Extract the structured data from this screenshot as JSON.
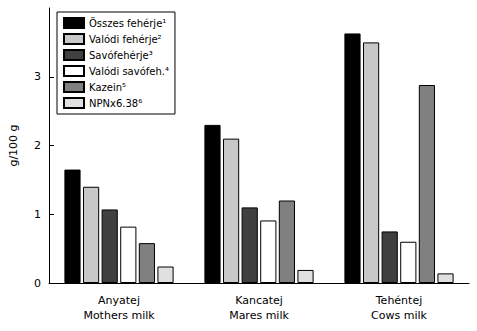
{
  "chart_data": {
    "type": "bar",
    "y_label": "g/100 g",
    "categories": [
      "Anyatej\nMothers milk",
      "Kancatej\nMares milk",
      "Tehéntej\nCows milk"
    ],
    "series": [
      {
        "name": "Összes fehérje¹",
        "color": "#000000",
        "values": [
          1.65,
          2.3,
          3.63
        ]
      },
      {
        "name": "Valódi fehérje²",
        "color": "#c8c8c8",
        "values": [
          1.4,
          2.1,
          3.5
        ]
      },
      {
        "name": "Savófehérje³",
        "color": "#404040",
        "values": [
          1.07,
          1.1,
          0.75
        ]
      },
      {
        "name": "Valódi savófeh.⁴",
        "color": "#ffffff",
        "values": [
          0.82,
          0.91,
          0.6
        ]
      },
      {
        "name": "Kazein⁵",
        "color": "#808080",
        "values": [
          0.58,
          1.2,
          2.88
        ]
      },
      {
        "name": "NPNx6.38⁶",
        "color": "#e0e0e0",
        "values": [
          0.24,
          0.19,
          0.14
        ]
      }
    ],
    "ylim": [
      0,
      4
    ],
    "yticks": [
      0,
      1,
      2,
      3
    ],
    "grid": false,
    "legend": "upper left"
  }
}
